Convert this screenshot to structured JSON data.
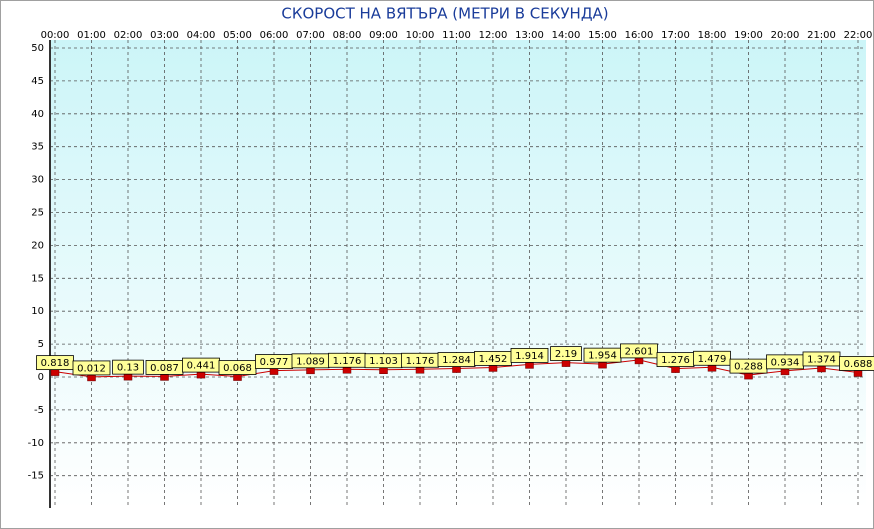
{
  "chart_data": {
    "type": "line",
    "title": "СКОРОСТ НА ВЯТЪРА (МЕТРИ В СЕКУНДА)",
    "categories": [
      "00:00",
      "01:00",
      "02:00",
      "03:00",
      "04:00",
      "05:00",
      "06:00",
      "07:00",
      "08:00",
      "09:00",
      "10:00",
      "11:00",
      "12:00",
      "13:00",
      "14:00",
      "15:00",
      "16:00",
      "17:00",
      "18:00",
      "19:00",
      "20:00",
      "21:00",
      "22:00"
    ],
    "values": [
      0.818,
      0.012,
      0.13,
      0.087,
      0.441,
      0.068,
      0.977,
      1.089,
      1.176,
      1.103,
      1.176,
      1.284,
      1.452,
      1.914,
      2.19,
      1.954,
      2.601,
      1.276,
      1.479,
      0.288,
      0.934,
      1.374,
      0.688
    ],
    "color": "#cc0000",
    "label_color": "#ffff99",
    "ylim": [
      -20,
      50
    ],
    "yticks": [
      50,
      45,
      40,
      35,
      30,
      25,
      20,
      15,
      10,
      5,
      0,
      -5,
      -10,
      -15
    ],
    "grid": true
  }
}
